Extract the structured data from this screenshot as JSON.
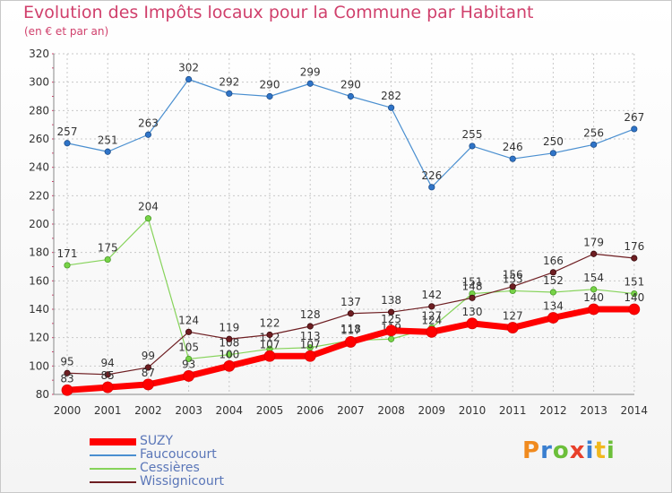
{
  "title": "Evolution des Impôts locaux pour la Commune par Habitant",
  "subtitle": "(en € et par an)",
  "logo": {
    "p": "P",
    "r": "r",
    "o": "o",
    "x": "x",
    "i1": "i",
    "t": "t",
    "i2": "i"
  },
  "colors": {
    "title": "#d0406c",
    "grid": "#c8c8c8"
  },
  "chart_data": {
    "type": "line",
    "title": "Evolution des Impôts locaux pour la Commune par Habitant",
    "subtitle": "(en € et par an)",
    "xlabel": "",
    "ylabel": "",
    "categories": [
      "2000",
      "2001",
      "2002",
      "2003",
      "2004",
      "2005",
      "2006",
      "2007",
      "2008",
      "2009",
      "2010",
      "2011",
      "2012",
      "2013",
      "2014"
    ],
    "ylim": [
      80,
      320
    ],
    "yticks": [
      80,
      100,
      120,
      140,
      160,
      180,
      200,
      220,
      240,
      260,
      280,
      300,
      320
    ],
    "grid": true,
    "legend_position": "bottom-left",
    "series": [
      {
        "name": "Faucoucourt",
        "color": "#4a8fd0",
        "labelColor": "#5a76b8",
        "values": [
          257,
          251,
          263,
          302,
          292,
          290,
          299,
          290,
          282,
          226,
          255,
          246,
          250,
          256,
          267
        ]
      },
      {
        "name": "Cessières",
        "color": "#86d35a",
        "labelColor": "#5a76b8",
        "values": [
          171,
          175,
          204,
          105,
          108,
          112,
          113,
          118,
          119,
          127,
          151,
          153,
          152,
          154,
          151
        ]
      },
      {
        "name": "Wissignicourt",
        "color": "#6e1e22",
        "labelColor": "#5a76b8",
        "values": [
          95,
          94,
          99,
          124,
          119,
          122,
          128,
          137,
          138,
          142,
          148,
          156,
          166,
          179,
          176
        ]
      },
      {
        "name": "SUZY",
        "color": "#ff0000",
        "labelColor": "#5a76b8",
        "values": [
          83,
          85,
          87,
          93,
          100,
          107,
          107,
          117,
          125,
          124,
          130,
          127,
          134,
          140,
          140
        ]
      }
    ]
  }
}
